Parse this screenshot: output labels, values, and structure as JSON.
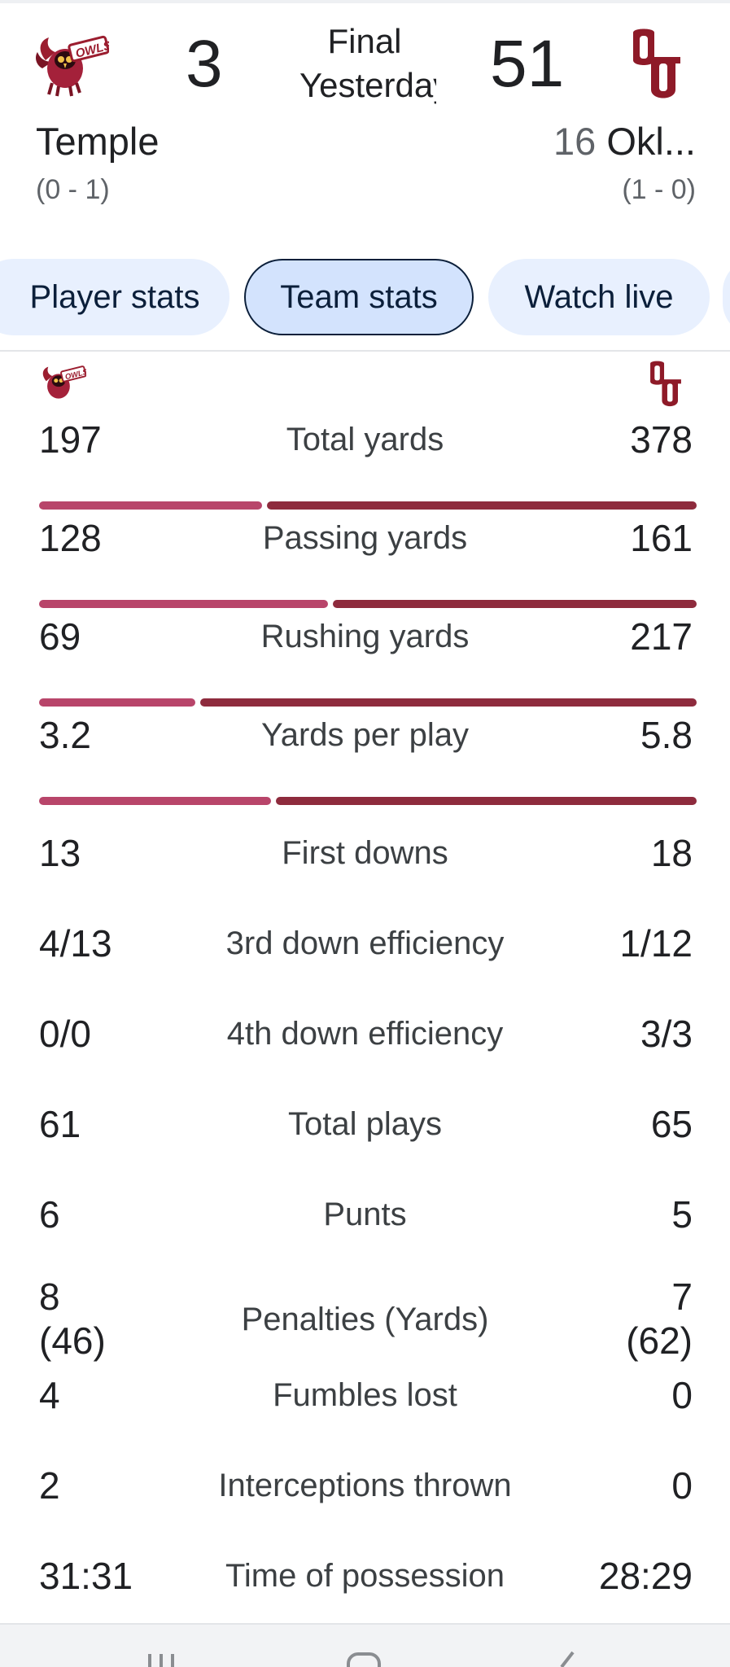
{
  "game": {
    "status_line1": "Final",
    "status_line2": "Yesterday",
    "away": {
      "name": "Temple",
      "record": "(0 - 1)",
      "score": "3",
      "logo_icon": "temple-owls-logo",
      "color": "#b8456a"
    },
    "home": {
      "rank": "16",
      "name": "Okl...",
      "record": "(1 - 0)",
      "score": "51",
      "logo_icon": "oklahoma-ou-logo",
      "color": "#8e2b3d"
    }
  },
  "tabs": [
    {
      "label": "Player stats",
      "selected": false
    },
    {
      "label": "Team stats",
      "selected": true
    },
    {
      "label": "Watch live",
      "selected": false
    }
  ],
  "stats": [
    {
      "label": "Total yards",
      "away": "197",
      "home": "378",
      "bar_fraction_away": 0.343
    },
    {
      "label": "Passing yards",
      "away": "128",
      "home": "161",
      "bar_fraction_away": 0.443
    },
    {
      "label": "Rushing yards",
      "away": "69",
      "home": "217",
      "bar_fraction_away": 0.241
    },
    {
      "label": "Yards per play",
      "away": "3.2",
      "home": "5.8",
      "bar_fraction_away": 0.356
    },
    {
      "label": "First downs",
      "away": "13",
      "home": "18"
    },
    {
      "label": "3rd down efficiency",
      "away": "4/13",
      "home": "1/12"
    },
    {
      "label": "4th down efficiency",
      "away": "0/0",
      "home": "3/3"
    },
    {
      "label": "Total plays",
      "away": "61",
      "home": "65"
    },
    {
      "label": "Punts",
      "away": "6",
      "home": "5"
    },
    {
      "label": "Penalties (Yards)",
      "away_line1": "8",
      "away_line2": "(46)",
      "home_line1": "7",
      "home_line2": "(62)"
    },
    {
      "label": "Fumbles lost",
      "away": "4",
      "home": "0"
    },
    {
      "label": "Interceptions thrown",
      "away": "2",
      "home": "0"
    },
    {
      "label": "Time of possession",
      "away": "31:31",
      "home": "28:29"
    }
  ]
}
